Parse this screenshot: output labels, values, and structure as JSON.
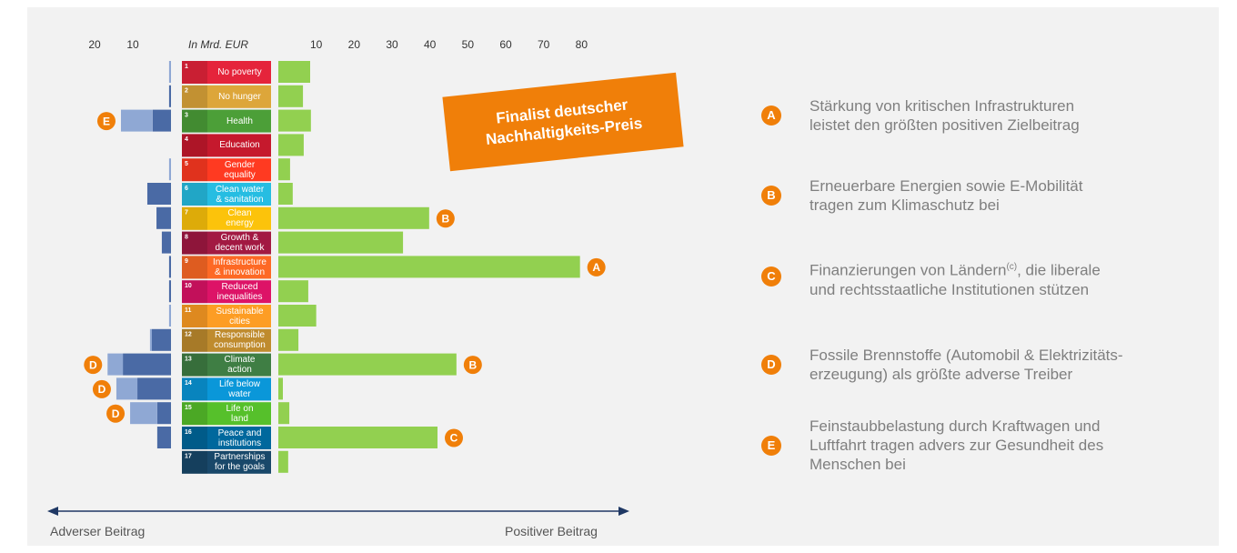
{
  "chart_data": {
    "type": "bar",
    "axis_label": "In Mrd. EUR",
    "left_label": "Adverser Beitrag",
    "right_label": "Positiver Beitrag",
    "badge": "Finalist deutscher\nNachhaltigkeits-Preis",
    "tile_numbers": [
      1,
      2,
      3,
      4,
      5,
      6,
      7,
      8,
      9,
      10,
      11,
      12,
      13,
      14,
      15,
      16,
      17
    ],
    "categories": [
      "No poverty",
      "No hunger",
      "Health",
      "Education",
      "Gender\nequality",
      "Clean water\n& sanitation",
      "Clean\nenergy",
      "Growth &\ndecent work",
      "Infrastructure\n& innovation",
      "Reduced\ninequalities",
      "Sustainable\ncities",
      "Responsible\nconsumption",
      "Climate\naction",
      "Life below\nwater",
      "Life on\nland",
      "Peace and\ninstitutions",
      "Partnerships\nfor the goals"
    ],
    "tile_colors": [
      "#e5243b",
      "#dda63a",
      "#4c9f38",
      "#c5192d",
      "#ff3a21",
      "#26bde2",
      "#fcc30b",
      "#a21942",
      "#fd6925",
      "#dd1367",
      "#fd9d24",
      "#bf8b2e",
      "#3f7e44",
      "#0a97d9",
      "#56c02b",
      "#00689d",
      "#19486a"
    ],
    "series": [
      {
        "color": "#92d050",
        "side": "positive",
        "values": [
          8.4,
          6.5,
          8.6,
          6.7,
          3.1,
          3.8,
          39.8,
          32.9,
          79.6,
          7.9,
          10,
          5.3,
          47,
          1.2,
          2.9,
          42,
          2.6
        ]
      },
      {
        "color": "#4a6aa5",
        "side": "adverse",
        "values": [
          0,
          0.5,
          4.8,
          0,
          0,
          6.2,
          3.8,
          2.4,
          0.5,
          0.5,
          0,
          5,
          12.6,
          8.8,
          3.6,
          3.6,
          0
        ]
      },
      {
        "color": "#8fa8d4",
        "side": "adverse",
        "values": [
          0.5,
          0,
          8.3,
          0,
          0.5,
          0,
          0,
          0,
          0,
          0,
          0.5,
          0.5,
          4,
          5.5,
          7.1,
          0,
          0
        ]
      }
    ],
    "xlim": [
      0,
      90
    ],
    "xticks": [
      10,
      20,
      30,
      40,
      50,
      60,
      70,
      80
    ],
    "x2lim": [
      0,
      35
    ],
    "x2ticks": [
      20,
      10
    ],
    "markers": [
      {
        "letter": "E",
        "row": 2,
        "side": "adverse"
      },
      {
        "letter": "B",
        "row": 6,
        "side": "positive"
      },
      {
        "letter": "A",
        "row": 8,
        "side": "positive"
      },
      {
        "letter": "D",
        "row": 12,
        "side": "adverse"
      },
      {
        "letter": "B",
        "row": 12,
        "side": "positive"
      },
      {
        "letter": "D",
        "row": 13,
        "side": "adverse"
      },
      {
        "letter": "D",
        "row": 14,
        "side": "adverse"
      },
      {
        "letter": "C",
        "row": 15,
        "side": "positive"
      }
    ],
    "notes": [
      {
        "letter": "A",
        "lines": [
          "Stärkung von kritischen Infrastrukturen",
          "leistet den größten positiven Zielbeitrag"
        ]
      },
      {
        "letter": "B",
        "lines": [
          "Erneuerbare Energien sowie E-Mobilität",
          "tragen zum Klimaschutz bei"
        ]
      },
      {
        "letter": "C",
        "lines": [
          "Finanzierungen von Ländern",
          "(c)",
          ", die liberale",
          "und rechtsstaatliche Institutionen stützen"
        ]
      },
      {
        "letter": "D",
        "lines": [
          "Fossile Brennstoffe (Automobil & Elektrizitäts-",
          "erzeugung) als größte adverse Treiber"
        ]
      },
      {
        "letter": "E",
        "lines": [
          "Feinstaubbelastung durch Kraftwagen und",
          "Luftfahrt tragen advers zur Gesundheit des",
          "Menschen bei"
        ]
      }
    ]
  }
}
